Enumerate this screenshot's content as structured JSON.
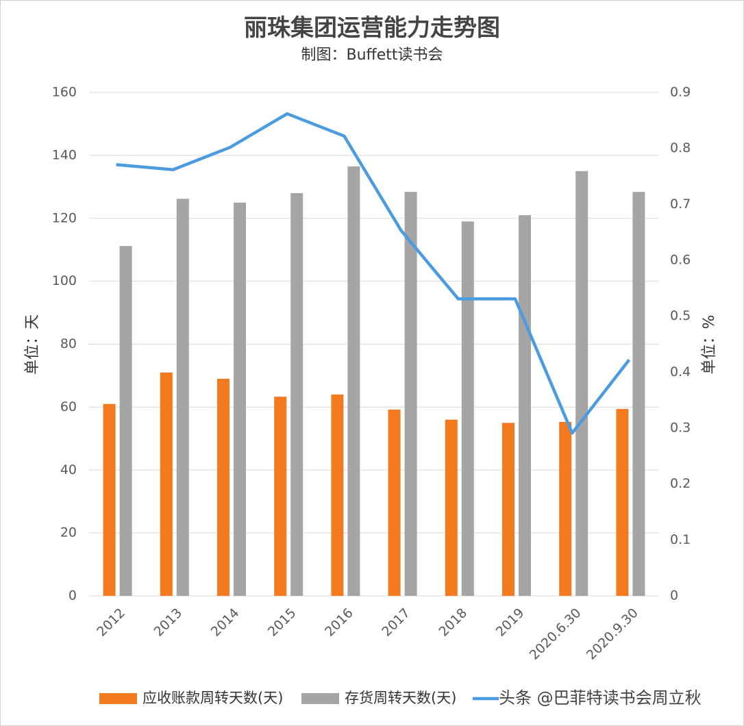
{
  "chart_data": {
    "type": "bar_line",
    "title": "丽珠集团运营能力走势图",
    "subtitle": "制图：Buffett读书会",
    "y_label": "单位：天",
    "y2_label": "单位：%",
    "watermark": "头条 @巴菲特读书会周立秋",
    "categories": [
      "2012",
      "2013",
      "2014",
      "2015",
      "2016",
      "2017",
      "2018",
      "2019",
      "2020.6.30",
      "2020.9.30"
    ],
    "series": [
      {
        "name": "应收账款周转天数(天)",
        "color": "#f47a20",
        "kind": "bar",
        "values": [
          61,
          71,
          69,
          63.3,
          64,
          59.2,
          56,
          55,
          55.3,
          59.4
        ]
      },
      {
        "name": "存货周转天数(天)",
        "color": "#a5a5a5",
        "kind": "bar",
        "values": [
          111.2,
          126.2,
          125,
          128,
          136.5,
          128.4,
          119,
          121,
          135,
          128.4
        ]
      },
      {
        "color": "#4a9be0",
        "kind": "line",
        "axis": "y2",
        "values": [
          0.771,
          0.762,
          0.802,
          0.862,
          0.822,
          0.653,
          0.531,
          0.531,
          0.291,
          0.422
        ]
      }
    ],
    "ylim": [
      0,
      160
    ],
    "yticks": [
      0,
      20,
      40,
      60,
      80,
      100,
      120,
      140,
      160
    ],
    "y2lim": [
      0,
      0.9
    ],
    "y2ticks": [
      0,
      0.1,
      0.2,
      0.3,
      0.4,
      0.5,
      0.6,
      0.7,
      0.8,
      0.9
    ],
    "grid": true
  }
}
